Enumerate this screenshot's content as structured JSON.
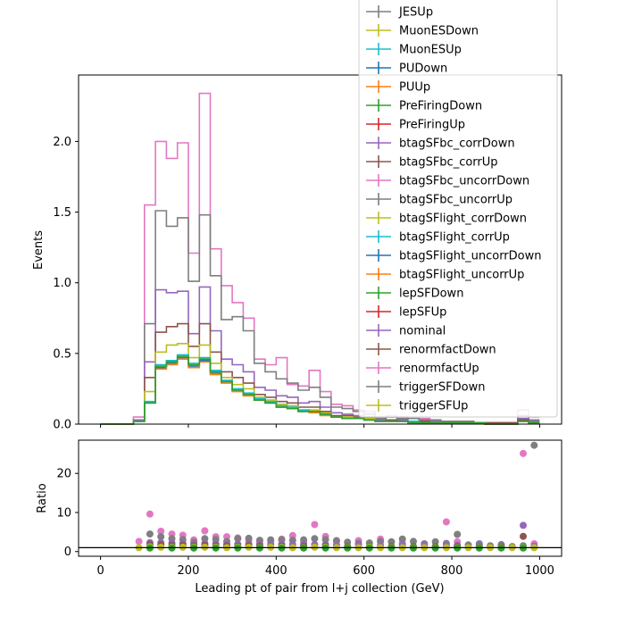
{
  "chart_data": [
    {
      "type": "step",
      "panel": "main",
      "xlabel": "",
      "ylabel": "Events",
      "xlim": [
        -50,
        1050
      ],
      "ylim": [
        0,
        2.47
      ],
      "xticks": [
        0,
        200,
        400,
        600,
        800,
        1000
      ],
      "xtick_labels": [
        "0",
        "200",
        "400",
        "600",
        "800",
        "1000"
      ],
      "yticks": [
        0.0,
        0.5,
        1.0,
        1.5,
        2.0
      ],
      "ytick_labels": [
        "0.0",
        "0.5",
        "1.0",
        "1.5",
        "2.0"
      ],
      "bin_edges": [
        0,
        25,
        50,
        75,
        100,
        125,
        150,
        175,
        200,
        225,
        250,
        275,
        300,
        325,
        350,
        375,
        400,
        425,
        450,
        475,
        500,
        525,
        550,
        575,
        600,
        625,
        650,
        675,
        700,
        725,
        750,
        775,
        800,
        825,
        850,
        875,
        900,
        925,
        950,
        975,
        1000
      ],
      "legend_position": "upper right",
      "series": [
        {
          "name": "renormfactUp",
          "color": "#e377c2",
          "values": [
            0,
            0,
            0,
            0.05,
            1.55,
            2.0,
            1.88,
            1.99,
            1.21,
            2.34,
            1.24,
            0.98,
            0.86,
            0.75,
            0.46,
            0.42,
            0.47,
            0.28,
            0.27,
            0.38,
            0.23,
            0.14,
            0.13,
            0.1,
            0.09,
            0.05,
            0.06,
            0.05,
            0.04,
            0.04,
            0.03,
            0.02,
            0.02,
            0.02,
            0.01,
            0.01,
            0.01,
            0.01,
            0.1,
            0.05
          ]
        },
        {
          "name": "triggerSFDown",
          "color": "#7f7f7f",
          "values": [
            0,
            0,
            0,
            0.03,
            0.71,
            1.51,
            1.4,
            1.46,
            1.01,
            1.48,
            1.05,
            0.74,
            0.76,
            0.66,
            0.43,
            0.37,
            0.32,
            0.29,
            0.24,
            0.26,
            0.19,
            0.12,
            0.11,
            0.09,
            0.07,
            0.04,
            0.05,
            0.04,
            0.04,
            0.03,
            0.03,
            0.02,
            0.02,
            0.02,
            0.01,
            0.01,
            0.01,
            0.01,
            0.06,
            0.03
          ]
        },
        {
          "name": "nominal",
          "color": "#9467bd",
          "values": [
            0,
            0,
            0,
            0.03,
            0.44,
            0.95,
            0.93,
            0.94,
            0.64,
            0.97,
            0.66,
            0.46,
            0.42,
            0.37,
            0.26,
            0.24,
            0.2,
            0.19,
            0.15,
            0.16,
            0.12,
            0.08,
            0.07,
            0.06,
            0.05,
            0.03,
            0.03,
            0.03,
            0.02,
            0.02,
            0.02,
            0.01,
            0.01,
            0.01,
            0.01,
            0.01,
            0.01,
            0.01,
            0.04,
            0.02
          ]
        },
        {
          "name": "renormfactDown",
          "color": "#8c564b",
          "values": [
            0,
            0,
            0,
            0.02,
            0.33,
            0.65,
            0.69,
            0.71,
            0.55,
            0.71,
            0.51,
            0.37,
            0.33,
            0.29,
            0.21,
            0.19,
            0.16,
            0.15,
            0.12,
            0.12,
            0.09,
            0.06,
            0.06,
            0.05,
            0.04,
            0.02,
            0.03,
            0.02,
            0.02,
            0.02,
            0.01,
            0.01,
            0.01,
            0.01,
            0.01,
            0.01,
            0.01,
            0.01,
            0.03,
            0.01
          ]
        },
        {
          "name": "triggerSFUp",
          "color": "#bcbd22",
          "values": [
            0,
            0,
            0,
            0.02,
            0.23,
            0.51,
            0.56,
            0.57,
            0.47,
            0.56,
            0.43,
            0.33,
            0.28,
            0.25,
            0.19,
            0.17,
            0.14,
            0.13,
            0.1,
            0.1,
            0.08,
            0.05,
            0.05,
            0.04,
            0.04,
            0.02,
            0.02,
            0.02,
            0.02,
            0.01,
            0.01,
            0.01,
            0.01,
            0.01,
            0.01,
            0.0,
            0.0,
            0.0,
            0.02,
            0.01
          ]
        },
        {
          "name": "MuonESUp",
          "color": "#17becf",
          "values": [
            0,
            0,
            0,
            0.02,
            0.16,
            0.42,
            0.45,
            0.49,
            0.43,
            0.47,
            0.38,
            0.31,
            0.25,
            0.22,
            0.18,
            0.16,
            0.13,
            0.12,
            0.1,
            0.09,
            0.07,
            0.05,
            0.04,
            0.04,
            0.03,
            0.02,
            0.02,
            0.02,
            0.02,
            0.01,
            0.01,
            0.01,
            0.01,
            0.01,
            0.01,
            0.0,
            0.0,
            0.0,
            0.02,
            0.01
          ]
        },
        {
          "name": "PUDown",
          "color": "#1f77b4",
          "values": [
            0,
            0,
            0,
            0.02,
            0.15,
            0.4,
            0.43,
            0.47,
            0.41,
            0.45,
            0.36,
            0.3,
            0.24,
            0.21,
            0.17,
            0.15,
            0.12,
            0.11,
            0.09,
            0.09,
            0.07,
            0.05,
            0.04,
            0.04,
            0.03,
            0.02,
            0.02,
            0.02,
            0.01,
            0.01,
            0.01,
            0.01,
            0.01,
            0.01,
            0.01,
            0.0,
            0.0,
            0.0,
            0.02,
            0.01
          ]
        },
        {
          "name": "PUUp",
          "color": "#ff7f0e",
          "values": [
            0,
            0,
            0,
            0.02,
            0.15,
            0.39,
            0.42,
            0.46,
            0.4,
            0.44,
            0.35,
            0.29,
            0.23,
            0.2,
            0.17,
            0.15,
            0.12,
            0.11,
            0.09,
            0.08,
            0.06,
            0.05,
            0.04,
            0.04,
            0.03,
            0.02,
            0.02,
            0.02,
            0.01,
            0.01,
            0.01,
            0.01,
            0.01,
            0.01,
            0.01,
            0.0,
            0.0,
            0.0,
            0.02,
            0.01
          ]
        },
        {
          "name": "lepSFDown",
          "color": "#2ca02c",
          "values": [
            0,
            0,
            0,
            0.02,
            0.15,
            0.41,
            0.44,
            0.48,
            0.42,
            0.46,
            0.37,
            0.3,
            0.24,
            0.21,
            0.17,
            0.15,
            0.12,
            0.11,
            0.09,
            0.09,
            0.07,
            0.05,
            0.04,
            0.04,
            0.03,
            0.02,
            0.02,
            0.02,
            0.01,
            0.01,
            0.01,
            0.01,
            0.01,
            0.01,
            0.01,
            0.0,
            0.0,
            0.0,
            0.02,
            0.01
          ]
        }
      ],
      "legend": [
        {
          "label": "JESUp",
          "color": "#7f7f7f"
        },
        {
          "label": "MuonESDown",
          "color": "#bcbd22"
        },
        {
          "label": "MuonESUp",
          "color": "#17becf"
        },
        {
          "label": "PUDown",
          "color": "#1f77b4"
        },
        {
          "label": "PUUp",
          "color": "#ff7f0e"
        },
        {
          "label": "PreFiringDown",
          "color": "#2ca02c"
        },
        {
          "label": "PreFiringUp",
          "color": "#d62728"
        },
        {
          "label": "btagSFbc_corrDown",
          "color": "#9467bd"
        },
        {
          "label": "btagSFbc_corrUp",
          "color": "#8c564b"
        },
        {
          "label": "btagSFbc_uncorrDown",
          "color": "#e377c2"
        },
        {
          "label": "btagSFbc_uncorrUp",
          "color": "#7f7f7f"
        },
        {
          "label": "btagSFlight_corrDown",
          "color": "#bcbd22"
        },
        {
          "label": "btagSFlight_corrUp",
          "color": "#17becf"
        },
        {
          "label": "btagSFlight_uncorrDown",
          "color": "#1f77b4"
        },
        {
          "label": "btagSFlight_uncorrUp",
          "color": "#ff7f0e"
        },
        {
          "label": "lepSFDown",
          "color": "#2ca02c"
        },
        {
          "label": "lepSFUp",
          "color": "#d62728"
        },
        {
          "label": "nominal",
          "color": "#9467bd"
        },
        {
          "label": "renormfactDown",
          "color": "#8c564b"
        },
        {
          "label": "renormfactUp",
          "color": "#e377c2"
        },
        {
          "label": "triggerSFDown",
          "color": "#7f7f7f"
        },
        {
          "label": "triggerSFUp",
          "color": "#bcbd22"
        }
      ]
    },
    {
      "type": "scatter",
      "panel": "ratio",
      "xlabel": "Leading pt of pair from l+j collection (GeV)",
      "ylabel": "Ratio",
      "xlim": [
        -50,
        1050
      ],
      "ylim": [
        -1.2,
        28.5
      ],
      "xticks": [
        0,
        200,
        400,
        600,
        800,
        1000
      ],
      "xtick_labels": [
        "0",
        "200",
        "400",
        "600",
        "800",
        "1000"
      ],
      "yticks": [
        0,
        10,
        20
      ],
      "ytick_labels": [
        "0",
        "10",
        "20"
      ],
      "reference_line": 1,
      "series": [
        {
          "name": "renormfactUp",
          "color": "#e377c2",
          "x": [
            87.5,
            112.5,
            137.5,
            162.5,
            187.5,
            212.5,
            237.5,
            262.5,
            287.5,
            312.5,
            337.5,
            362.5,
            387.5,
            412.5,
            437.5,
            462.5,
            487.5,
            512.5,
            537.5,
            587.5,
            637.5,
            687.5,
            787.5,
            812.5,
            962.5,
            987.5
          ],
          "y": [
            2.6,
            9.6,
            5.2,
            4.5,
            4.2,
            3.0,
            5.3,
            3.8,
            3.8,
            3.5,
            2.8,
            2.4,
            2.5,
            3.2,
            4.1,
            2.4,
            6.9,
            3.9,
            2.7,
            2.8,
            3.2,
            2.2,
            7.6,
            2.5,
            25.1,
            2.0
          ]
        },
        {
          "name": "triggerSFDown",
          "color": "#7f7f7f",
          "x": [
            112.5,
            137.5,
            162.5,
            187.5,
            212.5,
            237.5,
            262.5,
            287.5,
            312.5,
            337.5,
            362.5,
            387.5,
            412.5,
            437.5,
            462.5,
            487.5,
            512.5,
            537.5,
            562.5,
            587.5,
            612.5,
            637.5,
            662.5,
            687.5,
            712.5,
            737.5,
            762.5,
            787.5,
            812.5,
            837.5,
            862.5,
            887.5,
            912.5,
            937.5,
            962.5,
            987.5
          ],
          "y": [
            4.5,
            3.8,
            3.3,
            3.1,
            2.4,
            3.3,
            3.1,
            2.6,
            3.3,
            3.4,
            2.9,
            3.0,
            3.0,
            2.9,
            3.0,
            3.3,
            3.1,
            2.8,
            2.4,
            2.1,
            2.2,
            2.6,
            2.5,
            3.2,
            2.6,
            2.0,
            2.5,
            2.1,
            4.4,
            1.7,
            2.0,
            1.5,
            1.8,
            1.3,
            1.5,
            27.2
          ]
        },
        {
          "name": "nominal",
          "color": "#9467bd",
          "x": [
            112.5,
            137.5,
            162.5,
            187.5,
            212.5,
            237.5,
            262.5,
            287.5,
            312.5,
            337.5,
            362.5,
            387.5,
            412.5,
            437.5,
            462.5,
            487.5,
            512.5,
            537.5,
            587.5,
            637.5,
            687.5,
            737.5,
            787.5,
            812.5,
            862.5,
            912.5,
            962.5,
            987.5
          ],
          "y": [
            2.3,
            2.3,
            2.2,
            2.1,
            1.9,
            2.1,
            2.0,
            1.9,
            1.9,
            1.9,
            1.8,
            1.8,
            1.9,
            1.8,
            1.8,
            1.8,
            1.8,
            1.7,
            1.7,
            1.6,
            1.7,
            1.6,
            1.6,
            1.6,
            1.6,
            1.5,
            6.7,
            1.4
          ]
        },
        {
          "name": "renormfactDown",
          "color": "#8c564b",
          "x": [
            112.5,
            137.5,
            162.5,
            187.5,
            212.5,
            237.5,
            262.5,
            287.5,
            312.5,
            337.5,
            362.5,
            412.5,
            462.5,
            512.5,
            562.5,
            612.5,
            662.5,
            712.5,
            762.5,
            812.5,
            862.5,
            912.5,
            962.5
          ],
          "y": [
            1.8,
            1.7,
            1.6,
            1.6,
            1.5,
            1.6,
            1.5,
            1.5,
            1.4,
            1.5,
            1.4,
            1.4,
            1.4,
            1.4,
            1.3,
            1.3,
            1.3,
            1.3,
            1.3,
            1.3,
            1.2,
            1.2,
            3.9
          ]
        },
        {
          "name": "triggerSFUp",
          "color": "#bcbd22",
          "x": [
            87.5,
            112.5,
            137.5,
            162.5,
            187.5,
            212.5,
            237.5,
            262.5,
            287.5,
            312.5,
            337.5,
            362.5,
            387.5,
            412.5,
            437.5,
            462.5,
            487.5,
            512.5,
            537.5,
            562.5,
            587.5,
            612.5,
            637.5,
            662.5,
            687.5,
            712.5,
            737.5,
            762.5,
            787.5,
            812.5,
            837.5,
            862.5,
            887.5,
            912.5,
            937.5,
            962.5,
            987.5
          ],
          "y": [
            1.0,
            1.2,
            1.1,
            1.1,
            1.1,
            1.1,
            1.1,
            1.1,
            1.0,
            1.1,
            1.1,
            1.0,
            1.1,
            1.1,
            1.0,
            1.0,
            1.1,
            1.1,
            1.0,
            1.0,
            1.0,
            1.1,
            1.0,
            1.0,
            1.0,
            1.0,
            1.0,
            1.0,
            1.0,
            1.0,
            1.0,
            1.0,
            1.0,
            1.0,
            1.0,
            1.0,
            1.0
          ]
        },
        {
          "name": "lepSFDown",
          "color": "#2ca02c",
          "x": [
            112.5,
            162.5,
            212.5,
            262.5,
            312.5,
            362.5,
            412.5,
            462.5,
            512.5,
            562.5,
            612.5,
            662.5,
            712.5,
            762.5,
            812.5,
            862.5,
            912.5,
            962.5
          ],
          "y": [
            0.9,
            0.9,
            0.9,
            0.9,
            0.9,
            0.9,
            0.9,
            0.9,
            0.9,
            0.9,
            0.9,
            0.9,
            0.9,
            0.9,
            0.9,
            0.9,
            0.9,
            0.9
          ]
        }
      ]
    }
  ]
}
